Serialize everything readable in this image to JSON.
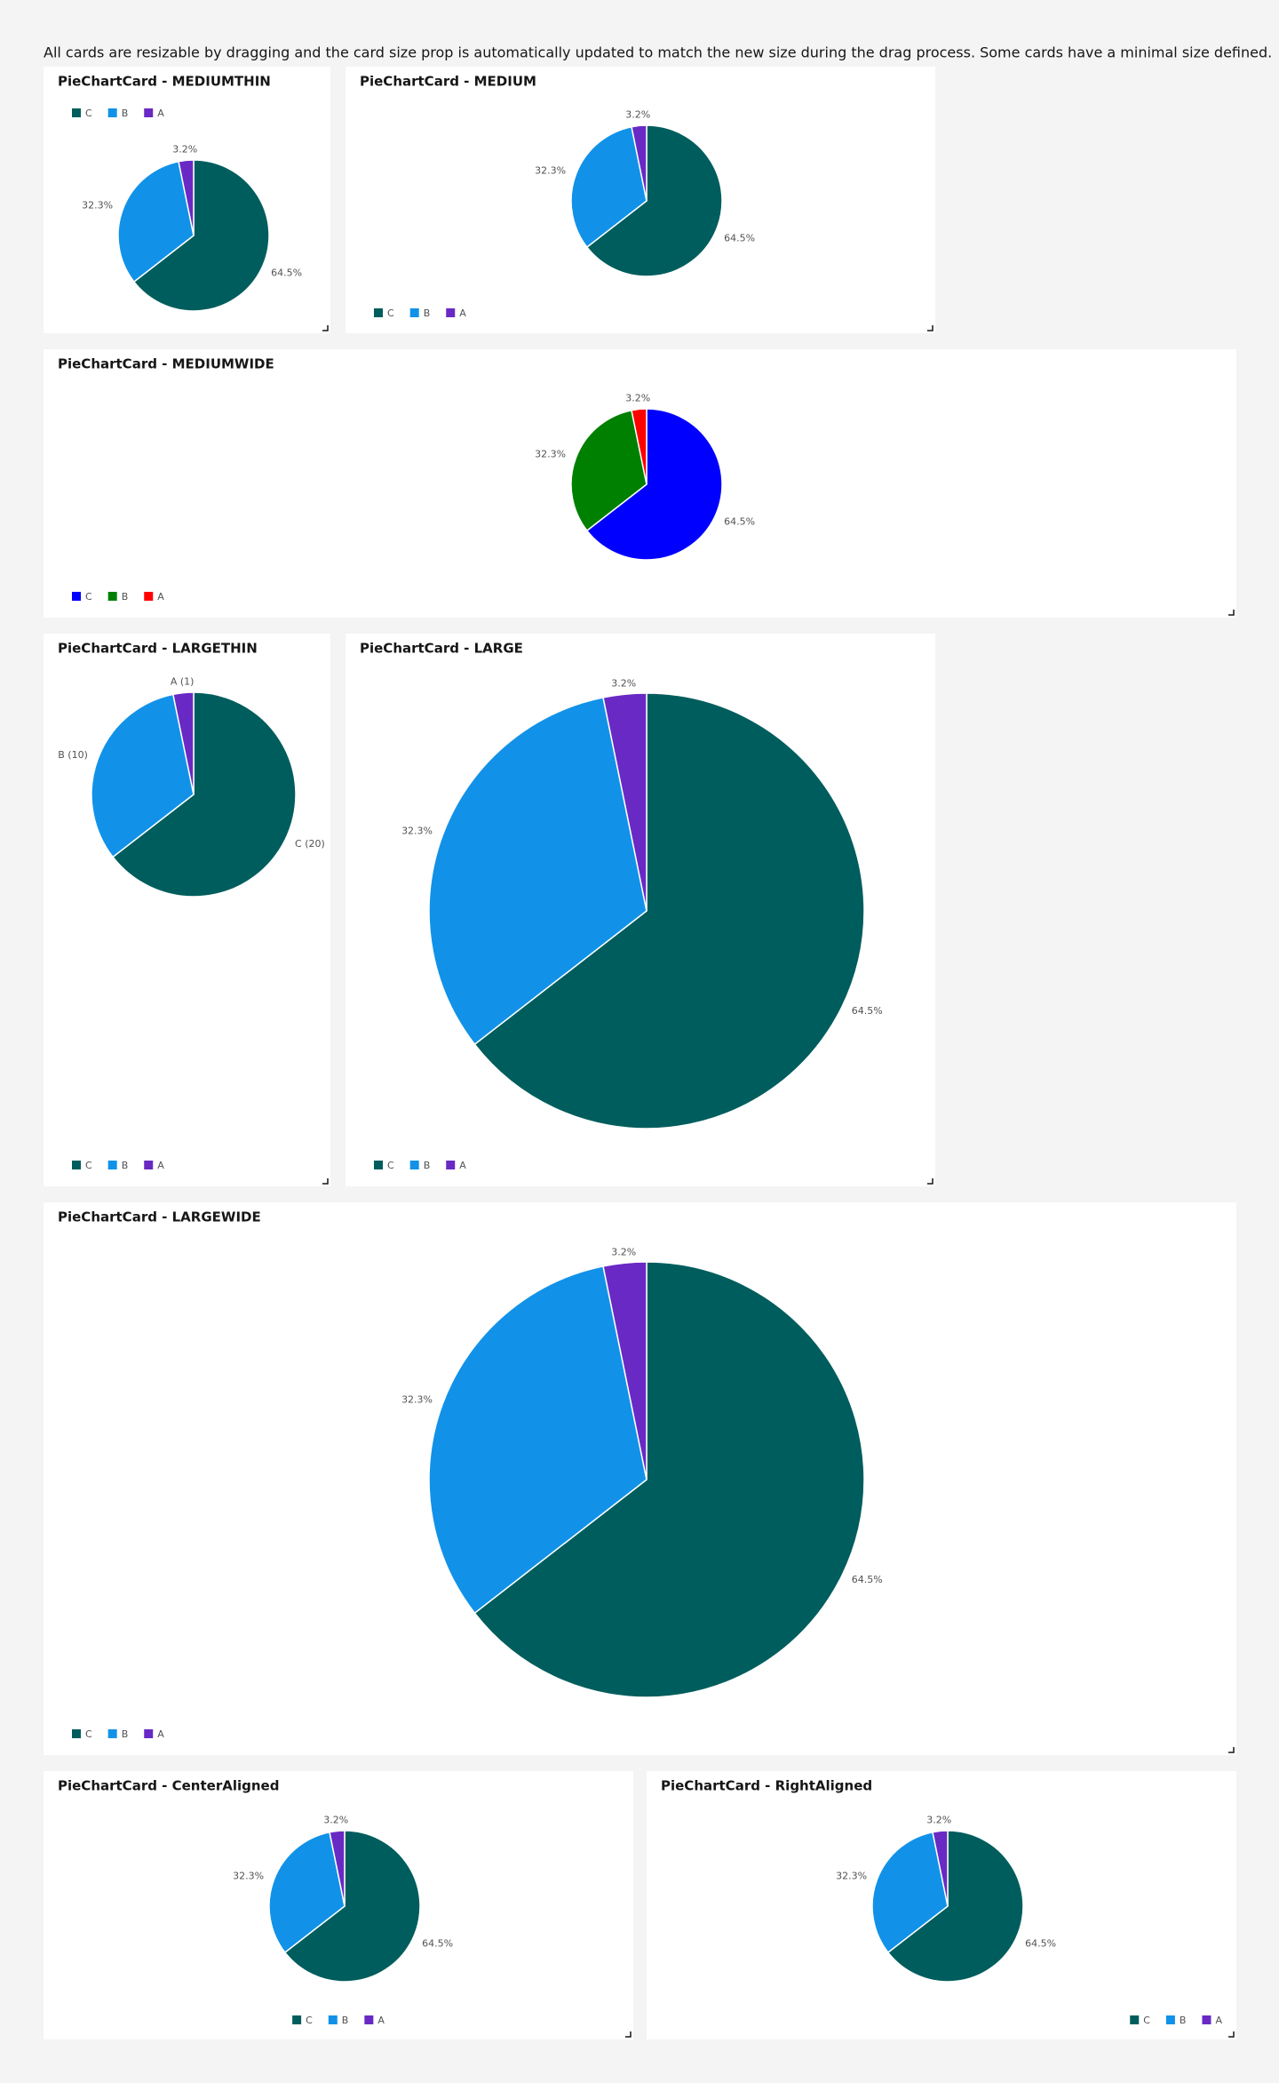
{
  "description": "All cards are resizable by dragging and the card size prop is automatically updated to match the new size during the drag process. Some cards have a minimal size defined.",
  "chart_data": [
    {
      "type": "pie",
      "title": "PieChartCard - MEDIUMTHIN",
      "categories": [
        "C",
        "B",
        "A"
      ],
      "values": [
        64.5,
        32.3,
        3.2
      ],
      "value_labels": [
        "64.5%",
        "32.3%",
        "3.2%"
      ],
      "colors": [
        "#005d5d",
        "#1192e8",
        "#6929c4"
      ],
      "legend": "top-left"
    },
    {
      "type": "pie",
      "title": "PieChartCard - MEDIUM",
      "categories": [
        "C",
        "B",
        "A"
      ],
      "values": [
        64.5,
        32.3,
        3.2
      ],
      "value_labels": [
        "64.5%",
        "32.3%",
        "3.2%"
      ],
      "colors": [
        "#005d5d",
        "#1192e8",
        "#6929c4"
      ],
      "legend": "bottom-left"
    },
    {
      "type": "pie",
      "title": "PieChartCard - MEDIUMWIDE",
      "categories": [
        "C",
        "B",
        "A"
      ],
      "values": [
        64.5,
        32.3,
        3.2
      ],
      "value_labels": [
        "64.5%",
        "32.3%",
        "3.2%"
      ],
      "colors": [
        "#0000ff",
        "#008000",
        "#ff0000"
      ],
      "legend": "bottom-left"
    },
    {
      "type": "pie",
      "title": "PieChartCard - LARGETHIN",
      "categories": [
        "C",
        "B",
        "A"
      ],
      "values": [
        20,
        10,
        1
      ],
      "value_labels": [
        "C (20)",
        "B (10)",
        "A (1)"
      ],
      "colors": [
        "#005d5d",
        "#1192e8",
        "#6929c4"
      ],
      "legend": "bottom-left"
    },
    {
      "type": "pie",
      "title": "PieChartCard - LARGE",
      "categories": [
        "C",
        "B",
        "A"
      ],
      "values": [
        64.5,
        32.3,
        3.2
      ],
      "value_labels": [
        "64.5%",
        "32.3%",
        "3.2%"
      ],
      "colors": [
        "#005d5d",
        "#1192e8",
        "#6929c4"
      ],
      "legend": "bottom-left"
    },
    {
      "type": "pie",
      "title": "PieChartCard - LARGEWIDE",
      "categories": [
        "C",
        "B",
        "A"
      ],
      "values": [
        64.5,
        32.3,
        3.2
      ],
      "value_labels": [
        "64.5%",
        "32.3%",
        "3.2%"
      ],
      "colors": [
        "#005d5d",
        "#1192e8",
        "#6929c4"
      ],
      "legend": "bottom-left"
    },
    {
      "type": "pie",
      "title": "PieChartCard - CenterAligned",
      "categories": [
        "C",
        "B",
        "A"
      ],
      "values": [
        64.5,
        32.3,
        3.2
      ],
      "value_labels": [
        "64.5%",
        "32.3%",
        "3.2%"
      ],
      "colors": [
        "#005d5d",
        "#1192e8",
        "#6929c4"
      ],
      "legend": "bottom-center"
    },
    {
      "type": "pie",
      "title": "PieChartCard - RightAligned",
      "categories": [
        "C",
        "B",
        "A"
      ],
      "values": [
        64.5,
        32.3,
        3.2
      ],
      "value_labels": [
        "64.5%",
        "32.3%",
        "3.2%"
      ],
      "colors": [
        "#005d5d",
        "#1192e8",
        "#6929c4"
      ],
      "legend": "bottom-right"
    }
  ]
}
